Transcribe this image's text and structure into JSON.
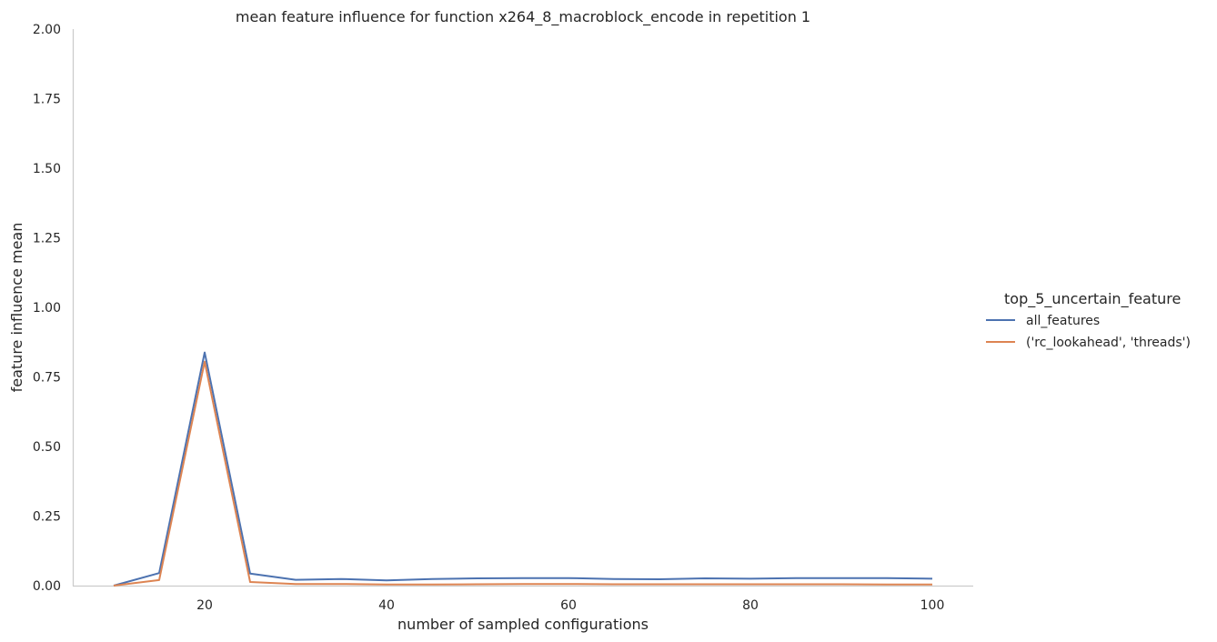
{
  "chart_data": {
    "type": "line",
    "title": "mean feature influence for function x264_8_macroblock_encode in repetition 1",
    "xlabel": "number of sampled configurations",
    "ylabel": "feature influence mean",
    "xlim": [
      5.5,
      104.5
    ],
    "ylim": [
      0,
      2
    ],
    "xticks": [
      20,
      40,
      60,
      80,
      100
    ],
    "yticks": [
      0.0,
      0.25,
      0.5,
      0.75,
      1.0,
      1.25,
      1.5,
      1.75,
      2.0
    ],
    "ytick_labels": [
      "0.00",
      "0.25",
      "0.50",
      "0.75",
      "1.00",
      "1.25",
      "1.50",
      "1.75",
      "2.00"
    ],
    "grid": false,
    "legend": {
      "title": "top_5_uncertain_feature",
      "position": "right"
    },
    "x": [
      10,
      15,
      20,
      25,
      30,
      35,
      40,
      45,
      50,
      55,
      60,
      65,
      70,
      75,
      80,
      85,
      90,
      95,
      100
    ],
    "series": [
      {
        "name": "all_features",
        "color": "#4c72b0",
        "values": [
          0.0,
          0.045,
          0.838,
          0.043,
          0.021,
          0.024,
          0.019,
          0.024,
          0.026,
          0.027,
          0.027,
          0.024,
          0.023,
          0.026,
          0.025,
          0.027,
          0.027,
          0.027,
          0.025
        ]
      },
      {
        "name": "('rc_lookahead', 'threads')",
        "color": "#dd8452",
        "values": [
          0.0,
          0.02,
          0.805,
          0.013,
          0.006,
          0.006,
          0.004,
          0.004,
          0.005,
          0.006,
          0.006,
          0.005,
          0.005,
          0.005,
          0.005,
          0.005,
          0.005,
          0.004,
          0.004
        ]
      }
    ]
  }
}
